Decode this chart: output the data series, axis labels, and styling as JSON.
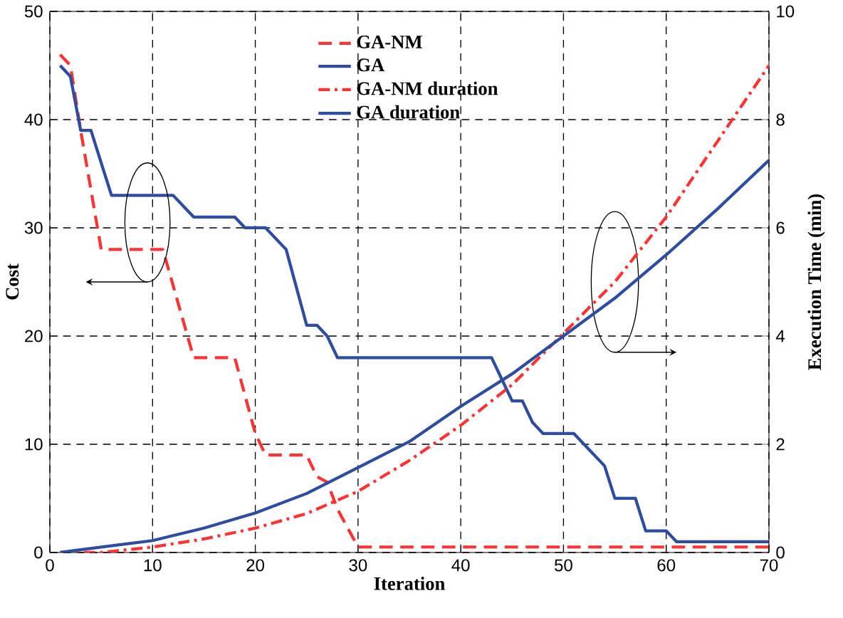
{
  "chart_data": {
    "type": "line",
    "xlabel": "Iteration",
    "ylabel": "Cost",
    "y2label": "Execution Time (min)",
    "xlim": [
      0,
      70
    ],
    "ylim": [
      0,
      50
    ],
    "y2lim": [
      0,
      10
    ],
    "xticks": [
      0,
      10,
      20,
      30,
      40,
      50,
      60,
      70
    ],
    "yticks": [
      0,
      10,
      20,
      30,
      40,
      50
    ],
    "y2ticks": [
      0,
      2,
      4,
      6,
      8,
      10
    ],
    "grid": true,
    "legend": "top",
    "series": [
      {
        "name": "GA-NM",
        "color": "#ff3333",
        "line_style": "dashed",
        "x": [
          1,
          2,
          3,
          5,
          11,
          14,
          18,
          20,
          21,
          25,
          26,
          27,
          28,
          30,
          70
        ],
        "values": [
          46,
          45,
          39,
          28,
          28,
          18,
          18,
          11,
          9,
          9,
          7,
          6.5,
          4,
          0.5,
          0.5
        ]
      },
      {
        "name": "GA",
        "color": "#2e4da0",
        "line_style": "solid",
        "x": [
          1,
          2,
          3,
          4,
          6,
          12,
          14,
          18,
          19,
          21,
          22,
          23,
          25,
          26,
          27,
          28,
          43,
          44,
          45,
          46,
          47,
          48,
          51,
          52,
          54,
          55,
          57,
          58,
          60,
          61,
          70
        ],
        "values": [
          45,
          44,
          39,
          39,
          33,
          33,
          31,
          31,
          30,
          30,
          29,
          28,
          21,
          21,
          20,
          18,
          18,
          16,
          14,
          14,
          12,
          11,
          11,
          10,
          8,
          5,
          5,
          2,
          2,
          1,
          1
        ]
      },
      {
        "name": "GA-NM duration",
        "color": "#ff3333",
        "line_style": "dashdot",
        "axis": "y2",
        "x": [
          1,
          5,
          10,
          15,
          20,
          25,
          30,
          35,
          40,
          45,
          50,
          55,
          60,
          65,
          70
        ],
        "values": [
          0,
          0,
          0.1,
          0.25,
          0.45,
          0.72,
          1.13,
          1.7,
          2.35,
          3.1,
          4.05,
          5.0,
          6.2,
          7.6,
          9.0
        ]
      },
      {
        "name": "GA duration",
        "color": "#2e4da0",
        "line_style": "solid",
        "axis": "y2",
        "x": [
          1,
          5,
          10,
          15,
          20,
          25,
          30,
          35,
          40,
          45,
          50,
          55,
          60,
          65,
          70
        ],
        "values": [
          0,
          0.1,
          0.22,
          0.45,
          0.73,
          1.09,
          1.57,
          2.05,
          2.7,
          3.3,
          4.0,
          4.7,
          5.5,
          6.35,
          7.25
        ]
      }
    ]
  }
}
